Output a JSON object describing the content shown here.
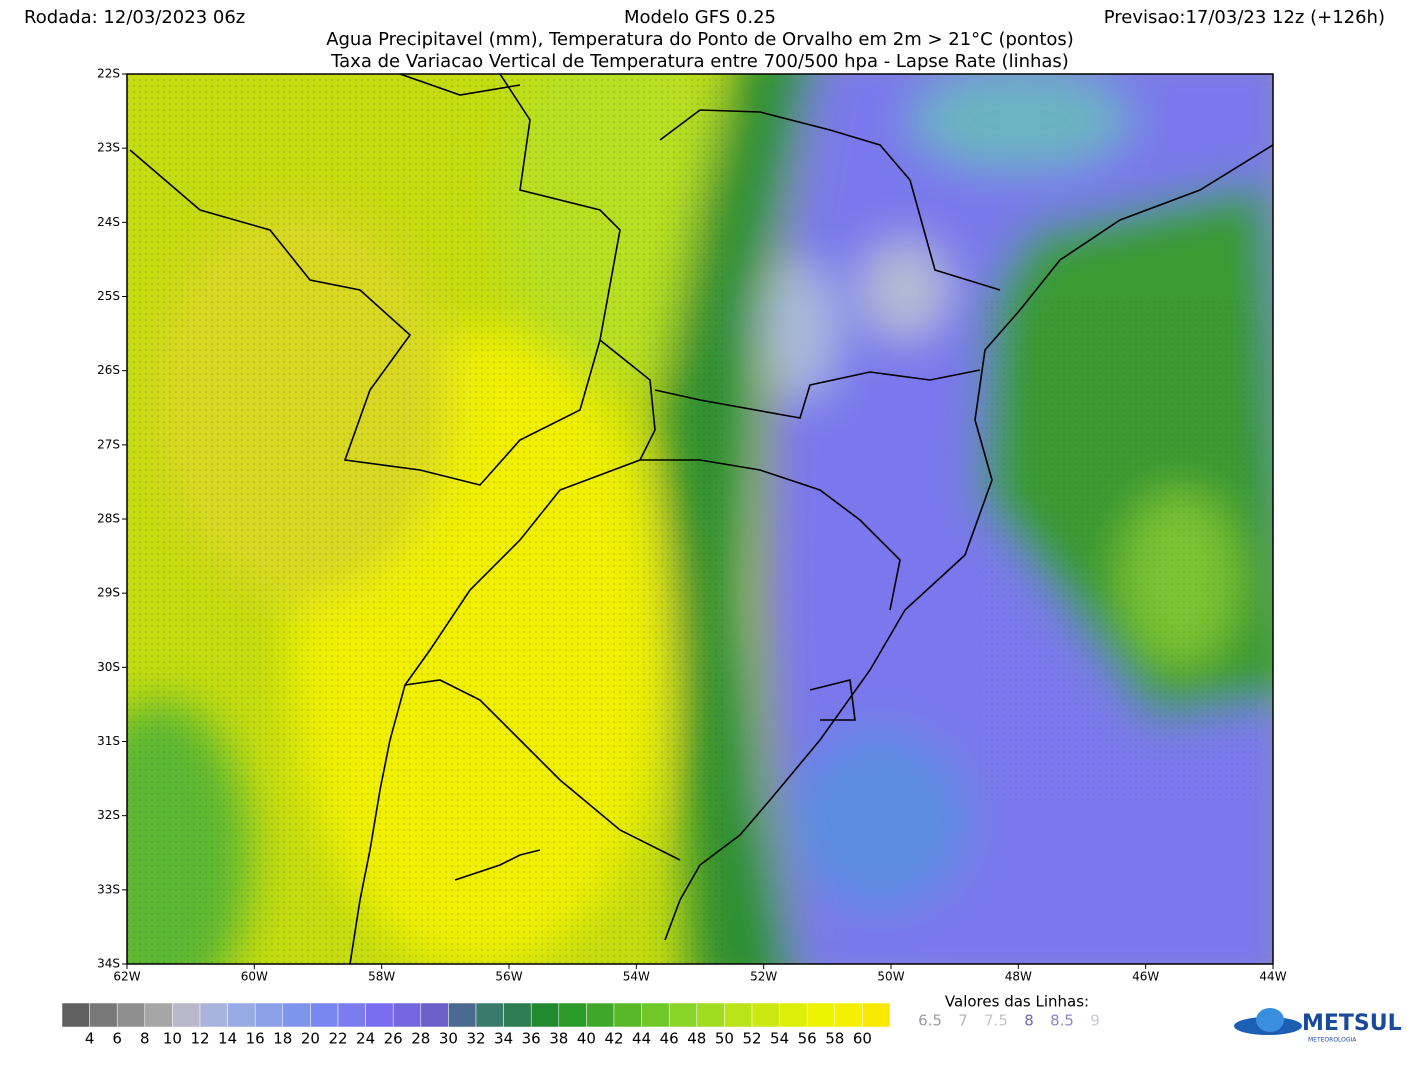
{
  "header": {
    "run": "Rodada: 12/03/2023 06z",
    "model": "Modelo GFS 0.25",
    "forecast": "Previsao:17/03/23 12z (+126h)",
    "subtitle_1": "Agua Precipitavel (mm), Temperatura do Ponto de Orvalho em 2m > 21°C (pontos)",
    "subtitle_2": "Taxa de Variacao Vertical de Temperatura entre 700/500 hpa - Lapse Rate (linhas)"
  },
  "map": {
    "lat_labels": [
      "22S",
      "23S",
      "24S",
      "25S",
      "26S",
      "27S",
      "28S",
      "29S",
      "30S",
      "31S",
      "32S",
      "33S",
      "34S"
    ],
    "lon_labels": [
      "62W",
      "60W",
      "58W",
      "56W",
      "54W",
      "52W",
      "50W",
      "48W",
      "46W",
      "44W"
    ]
  },
  "colorbar": {
    "labels": [
      4,
      6,
      8,
      10,
      12,
      14,
      16,
      18,
      20,
      22,
      24,
      26,
      28,
      30,
      32,
      34,
      36,
      38,
      40,
      42,
      44,
      46,
      48,
      50,
      52,
      54,
      56,
      58,
      60
    ],
    "colors": [
      "#606060",
      "#787878",
      "#8f8f8f",
      "#a6a6a6",
      "#b8b8c8",
      "#a8b4dc",
      "#98aae4",
      "#8aa0e8",
      "#7f95ec",
      "#7888f0",
      "#7a7cf0",
      "#7a6ef0",
      "#7468e0",
      "#6a60c8",
      "#4a6a90",
      "#3a7a6a",
      "#2e7d50",
      "#1f8a2e",
      "#2a9a28",
      "#40a828",
      "#58b828",
      "#70c828",
      "#88d428",
      "#a0dc20",
      "#b8e418",
      "#cce810",
      "#ddee08",
      "#ecf200",
      "#f4f000",
      "#f8e800"
    ]
  },
  "line_legend": {
    "title": "Valores das Linhas:",
    "values": [
      "6.5",
      "7",
      "7.5",
      "8",
      "8.5",
      "9"
    ],
    "colors": [
      "#9a9aa8",
      "#b4b4bc",
      "#c4c4cc",
      "#6a6ab8",
      "#8888c8",
      "#c8c8d8"
    ]
  },
  "logo": {
    "name": "METSUL",
    "sub": "METEOROLOGIA"
  }
}
